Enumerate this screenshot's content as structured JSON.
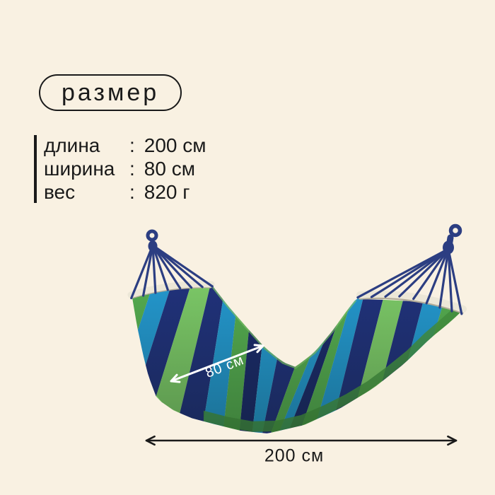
{
  "badge": {
    "label": "размер"
  },
  "specs": {
    "separator": ":",
    "rows": [
      {
        "label": "длина",
        "value": "200 см"
      },
      {
        "label": "ширина",
        "value": "80 см"
      },
      {
        "label": "вес",
        "value": "820 г"
      }
    ]
  },
  "diagram": {
    "width_label": "80 см",
    "length_label": "200 см"
  },
  "colors": {
    "background": "#f9f1e2",
    "text": "#1a1a1a",
    "rope": "#2c3e82",
    "bar": "#ece7d7",
    "bar_shadow": "#b3ac99",
    "width_arrow": "#ffffff",
    "length_arrow": "#1a1a1a",
    "fold_green": "#44923f",
    "edge_highlight": "#7cc46a",
    "stripes": [
      "#53a84e",
      "#2394c9",
      "#203178",
      "#79c465",
      "#203178",
      "#2394c9",
      "#53a84e",
      "#1b2a68",
      "#2394c9",
      "#203178",
      "#53a84e",
      "#2394c9",
      "#1b2a68",
      "#53a84e",
      "#2394c9",
      "#203178",
      "#79c465",
      "#203178",
      "#2394c9",
      "#53a84e"
    ]
  }
}
